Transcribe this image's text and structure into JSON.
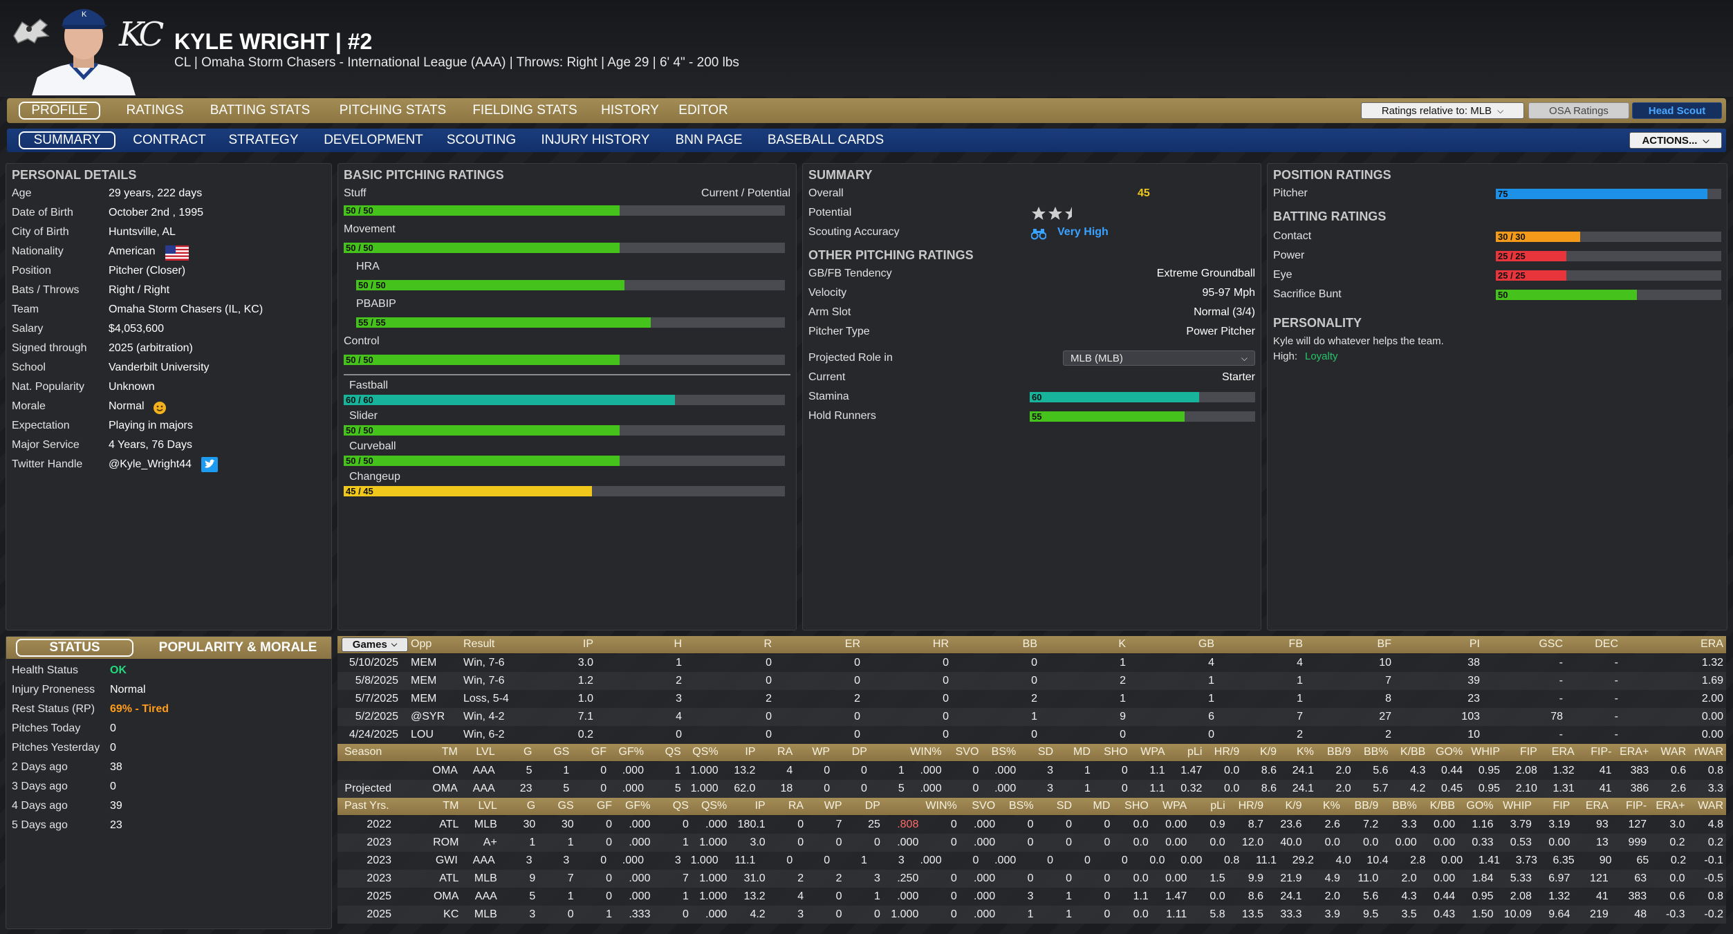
{
  "player": {
    "name": "KYLE WRIGHT  |  #2",
    "subtitle": "CL | Omaha Storm Chasers - International League (AAA)  |  Throws: Right  |  Age 29  |  6' 4\" - 200 lbs"
  },
  "logo_text": "KC",
  "nav_main": [
    "PROFILE",
    "RATINGS",
    "BATTING STATS",
    "PITCHING STATS",
    "FIELDING STATS",
    "HISTORY",
    "EDITOR"
  ],
  "nav_sub": [
    "SUMMARY",
    "CONTRACT",
    "STRATEGY",
    "DEVELOPMENT",
    "SCOUTING",
    "INJURY HISTORY",
    "BNN PAGE",
    "BASEBALL CARDS"
  ],
  "controls": {
    "ratings_relative": "Ratings relative to: MLB",
    "osa": "OSA Ratings",
    "head_scout": "Head Scout",
    "actions": "ACTIONS..."
  },
  "personal": {
    "title": "PERSONAL DETAILS",
    "rows": [
      [
        "Age",
        "29 years, 222 days"
      ],
      [
        "Date of Birth",
        "October 2nd , 1995"
      ],
      [
        "City of Birth",
        "Huntsville, AL"
      ],
      [
        "Nationality",
        "American"
      ],
      [
        "Position",
        "Pitcher (Closer)"
      ],
      [
        "Bats / Throws",
        "Right / Right"
      ],
      [
        "Team",
        "Omaha Storm Chasers (IL, KC)"
      ],
      [
        "Salary",
        "$4,053,600"
      ],
      [
        "Signed through",
        "2025 (arbitration)"
      ],
      [
        "School",
        "Vanderbilt University"
      ],
      [
        "Nat. Popularity",
        "Unknown"
      ],
      [
        "Morale",
        "Normal"
      ],
      [
        "Expectation",
        "Playing in majors"
      ],
      [
        "Major Service",
        "4 Years, 76 Days"
      ],
      [
        "Twitter Handle",
        "@Kyle_Wright44"
      ]
    ]
  },
  "basic_pitching": {
    "title": "BASIC PITCHING RATINGS",
    "cur_pot": "Current / Potential",
    "ratings": [
      {
        "label": "Stuff",
        "value": "50 / 50",
        "level": 50,
        "color": "green"
      },
      {
        "label": "Movement",
        "value": "50 / 50",
        "level": 50,
        "color": "green"
      },
      {
        "label": "HRA",
        "value": "50 / 50",
        "level": 50,
        "color": "green"
      },
      {
        "label": "PBABIP",
        "value": "55 / 55",
        "level": 55,
        "color": "green"
      },
      {
        "label": "Control",
        "value": "50 / 50",
        "level": 50,
        "color": "green"
      },
      {
        "label": "Fastball",
        "value": "60 / 60",
        "level": 60,
        "color": "teal"
      },
      {
        "label": "Slider",
        "value": "50 / 50",
        "level": 50,
        "color": "green"
      },
      {
        "label": "Curveball",
        "value": "50 / 50",
        "level": 50,
        "color": "green"
      },
      {
        "label": "Changeup",
        "value": "45 / 45",
        "level": 45,
        "color": "yellow"
      }
    ]
  },
  "summary": {
    "title": "SUMMARY",
    "overall_label": "Overall",
    "overall": "45",
    "potential_label": "Potential",
    "potential_stars": 2.5,
    "scouting_label": "Scouting Accuracy",
    "scouting": "Very High",
    "other_title": "OTHER PITCHING RATINGS",
    "other": [
      [
        "GB/FB Tendency",
        "Extreme Groundball"
      ],
      [
        "Velocity",
        "95-97 Mph"
      ],
      [
        "Arm Slot",
        "Normal (3/4)"
      ],
      [
        "Pitcher Type",
        "Power Pitcher"
      ]
    ],
    "projected_label": "Projected Role in",
    "projected_select": "MLB (MLB)",
    "current_label": "Current",
    "current": "Starter",
    "stamina_label": "Stamina",
    "stamina": "60",
    "stamina_level": 60,
    "hold_label": "Hold Runners",
    "hold": "55",
    "hold_level": 55
  },
  "position": {
    "title": "POSITION RATINGS",
    "pitcher_label": "Pitcher",
    "pitcher": "75",
    "pitcher_level": 75,
    "batting_title": "BATTING RATINGS",
    "batting": [
      {
        "label": "Contact",
        "value": "30 / 30",
        "level": 30,
        "color": "orange"
      },
      {
        "label": "Power",
        "value": "25 / 25",
        "level": 25,
        "color": "red"
      },
      {
        "label": "Eye",
        "value": "25 / 25",
        "level": 25,
        "color": "red"
      },
      {
        "label": "Sacrifice Bunt",
        "value": "50",
        "level": 50,
        "color": "green"
      }
    ],
    "personality_title": "PERSONALITY",
    "personality_text": "Kyle will do whatever helps the team.",
    "high_label": "High:",
    "high_value": "Loyalty"
  },
  "status": {
    "tab1": "STATUS",
    "tab2": "POPULARITY & MORALE",
    "rows": [
      [
        "Health Status",
        "OK"
      ],
      [
        "Injury Proneness",
        "Normal"
      ],
      [
        "Rest Status (RP)",
        "69% - Tired"
      ],
      [
        "Pitches Today",
        "0"
      ],
      [
        "Pitches Yesterday",
        "0"
      ],
      [
        "2 Days ago",
        "38"
      ],
      [
        "3 Days ago",
        "0"
      ],
      [
        "4 Days ago",
        "39"
      ],
      [
        "5 Days ago",
        "23"
      ]
    ]
  },
  "games": {
    "select": "Games",
    "headers": [
      "Opp",
      "Result",
      "IP",
      "H",
      "R",
      "ER",
      "HR",
      "BB",
      "K",
      "GB",
      "FB",
      "BF",
      "PI",
      "GSC",
      "DEC",
      "ERA"
    ],
    "rows": [
      [
        "5/10/2025",
        "MEM",
        "Win, 7-6",
        "3.0",
        "1",
        "0",
        "0",
        "0",
        "0",
        "1",
        "4",
        "4",
        "10",
        "38",
        "-",
        "-",
        "1.32"
      ],
      [
        "5/8/2025",
        "MEM",
        "Win, 7-6",
        "1.2",
        "2",
        "0",
        "0",
        "0",
        "0",
        "2",
        "1",
        "1",
        "7",
        "39",
        "-",
        "-",
        "1.69"
      ],
      [
        "5/7/2025",
        "MEM",
        "Loss, 5-4",
        "1.0",
        "3",
        "2",
        "2",
        "0",
        "2",
        "1",
        "1",
        "1",
        "8",
        "23",
        "-",
        "-",
        "2.00"
      ],
      [
        "5/2/2025",
        "@SYR",
        "Win, 4-2",
        "7.1",
        "4",
        "0",
        "0",
        "0",
        "1",
        "9",
        "6",
        "7",
        "27",
        "103",
        "78",
        "-",
        "0.00"
      ],
      [
        "4/24/2025",
        "LOU",
        "Win, 6-2",
        "0.2",
        "0",
        "0",
        "0",
        "0",
        "0",
        "0",
        "0",
        "2",
        "2",
        "10",
        "-",
        "-",
        "0.00"
      ]
    ]
  },
  "season": {
    "headers": [
      "Season",
      "TM",
      "LVL",
      "G",
      "GS",
      "GF",
      "GF%",
      "QS",
      "QS%",
      "IP",
      "RA",
      "WP",
      "DP",
      "WIN%",
      "SVO",
      "BS%",
      "SD",
      "MD",
      "SHO",
      "WPA",
      "pLi",
      "HR/9",
      "K/9",
      "K%",
      "BB/9",
      "BB%",
      "K/BB",
      "GO%",
      "WHIP",
      "FIP",
      "ERA",
      "FIP-",
      "ERA+",
      "WAR",
      "rWAR"
    ],
    "rows": [
      [
        "",
        "OMA",
        "AAA",
        "5",
        "1",
        "0",
        ".000",
        "1",
        "1.000",
        "13.2",
        "4",
        "0",
        "0",
        "1",
        ".000",
        "0",
        ".000",
        "3",
        "1",
        "0",
        "1.1",
        "1.47",
        "0.0",
        "8.6",
        "24.1",
        "2.0",
        "5.6",
        "4.3",
        "0.44",
        "0.95",
        "2.08",
        "1.32",
        "41",
        "383",
        "0.6",
        "0.8"
      ],
      [
        "Projected",
        "OMA",
        "AAA",
        "23",
        "5",
        "0",
        ".000",
        "5",
        "1.000",
        "62.0",
        "18",
        "0",
        "0",
        "5",
        ".000",
        "0",
        ".000",
        "3",
        "1",
        "0",
        "1.1",
        "0.32",
        "0.0",
        "8.6",
        "24.1",
        "2.0",
        "5.7",
        "4.2",
        "0.45",
        "0.95",
        "2.10",
        "1.31",
        "41",
        "386",
        "2.6",
        "3.3"
      ]
    ]
  },
  "past": {
    "headers": [
      "Past Yrs.",
      "TM",
      "LVL",
      "G",
      "GS",
      "GF",
      "GF%",
      "QS",
      "QS%",
      "IP",
      "RA",
      "WP",
      "DP",
      "WIN%",
      "SVO",
      "BS%",
      "SD",
      "MD",
      "SHO",
      "WPA",
      "pLi",
      "HR/9",
      "K/9",
      "K%",
      "BB/9",
      "BB%",
      "K/BB",
      "GO%",
      "WHIP",
      "FIP",
      "ERA",
      "FIP-",
      "ERA+",
      "WAR",
      "rWAR"
    ],
    "rows": [
      [
        "2022",
        "ATL",
        "MLB",
        "30",
        "30",
        "0",
        ".000",
        "0",
        ".000",
        "180.1",
        "0",
        "7",
        "25",
        ".808",
        "0",
        ".000",
        "0",
        "0",
        "0",
        "0.0",
        "0.00",
        "0.9",
        "8.7",
        "23.6",
        "2.6",
        "7.2",
        "3.3",
        "0.00",
        "1.16",
        "3.79",
        "3.19",
        "93",
        "127",
        "3.0",
        "4.8"
      ],
      [
        "2023",
        "ROM",
        "A+",
        "1",
        "1",
        "0",
        ".000",
        "1",
        "1.000",
        "3.0",
        "0",
        "0",
        "0",
        ".000",
        "0",
        ".000",
        "0",
        "0",
        "0",
        "0.0",
        "0.00",
        "0.0",
        "12.0",
        "40.0",
        "0.0",
        "0.0",
        "0.00",
        "0.00",
        "0.33",
        "0.53",
        "0.00",
        "13",
        "999",
        "0.2",
        "0.2"
      ],
      [
        "2023",
        "GWI",
        "AAA",
        "3",
        "3",
        "0",
        ".000",
        "3",
        "1.000",
        "11.1",
        "0",
        "0",
        "1",
        "3",
        ".000",
        "0",
        ".000",
        "0",
        "0",
        "0",
        "0.0",
        "0.00",
        "0.8",
        "11.1",
        "29.2",
        "4.0",
        "10.4",
        "2.8",
        "0.00",
        "1.41",
        "3.73",
        "6.35",
        "90",
        "65",
        "0.2",
        "-0.1"
      ],
      [
        "2023",
        "ATL",
        "MLB",
        "9",
        "7",
        "0",
        ".000",
        "7",
        "1.000",
        "31.0",
        "2",
        "2",
        "3",
        ".250",
        "0",
        ".000",
        "0",
        "0",
        "0",
        "0.0",
        "0.00",
        "1.5",
        "9.9",
        "21.9",
        "4.9",
        "11.0",
        "2.0",
        "0.00",
        "1.84",
        "5.33",
        "6.97",
        "121",
        "63",
        "0.0",
        "-0.5"
      ],
      [
        "2025",
        "OMA",
        "AAA",
        "5",
        "1",
        "0",
        ".000",
        "1",
        "1.000",
        "13.2",
        "4",
        "0",
        "1",
        ".000",
        "0",
        ".000",
        "3",
        "1",
        "0",
        "1.1",
        "1.47",
        "0.0",
        "8.6",
        "24.1",
        "2.0",
        "5.6",
        "4.3",
        "0.44",
        "0.95",
        "2.08",
        "1.32",
        "41",
        "383",
        "0.6",
        "0.8"
      ],
      [
        "2025",
        "KC",
        "MLB",
        "3",
        "0",
        "1",
        ".333",
        "0",
        ".000",
        "4.2",
        "3",
        "0",
        "0",
        "1.000",
        "0",
        ".000",
        "1",
        "1",
        "0",
        "0.0",
        "1.11",
        "5.8",
        "13.5",
        "33.3",
        "3.9",
        "9.5",
        "3.5",
        "0.43",
        "1.50",
        "10.09",
        "9.64",
        "219",
        "48",
        "-0.3",
        "-0.2"
      ]
    ]
  },
  "colors": {
    "accent_gold": "#a38c55",
    "nav_blue": "#12306a",
    "ok_green": "#22d97c",
    "tired_orange": "#ff9d1a",
    "win_red": "#ff6b6b",
    "loyalty_green": "#27c46a",
    "very_high_blue": "#3aa2ff"
  }
}
